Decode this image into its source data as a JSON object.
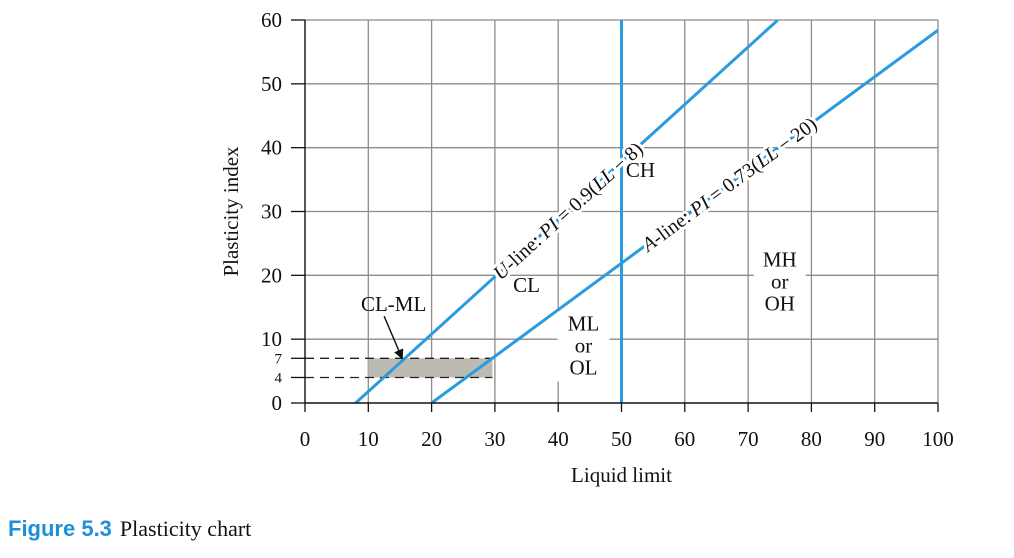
{
  "chart_data": {
    "type": "line",
    "xlabel": "Liquid limit",
    "ylabel": "Plasticity index",
    "xlim": [
      0,
      100
    ],
    "ylim": [
      0,
      60
    ],
    "x_ticks": [
      "0",
      "10",
      "20",
      "30",
      "40",
      "50",
      "60",
      "70",
      "80",
      "90",
      "100"
    ],
    "y_ticks": [
      "0",
      "10",
      "20",
      "30",
      "40",
      "50",
      "60"
    ],
    "y_minor_ticks": [
      "4",
      "7"
    ],
    "grid": true,
    "series": [
      {
        "id": "u-line",
        "type": "line",
        "x": [
          8,
          74.7
        ],
        "y": [
          0,
          60
        ],
        "label": "U-line: PI = 0.9(LL − 8)",
        "color": "#2b9be0"
      },
      {
        "id": "a-line",
        "type": "line",
        "x": [
          20,
          100
        ],
        "y": [
          0,
          58.4
        ],
        "label": "A-line: PI = 0.73(LL − 20)",
        "color": "#2b9be0"
      },
      {
        "id": "ll-50",
        "type": "line",
        "x": [
          50,
          50
        ],
        "y": [
          0,
          60
        ],
        "color": "#2b9be0"
      }
    ],
    "shaded_zone": {
      "name": "CL-ML",
      "x": [
        10,
        29.6
      ],
      "y": [
        4,
        7
      ],
      "color": "#bdbab3"
    },
    "region_labels": [
      {
        "text": "CH",
        "x": 53,
        "y": 36.5
      },
      {
        "text": "CL",
        "x": 35,
        "y": 18.5
      },
      {
        "text": "CL-ML",
        "x": 14,
        "y": 15.5
      },
      {
        "text": "ML\nor\nOL",
        "x": 44,
        "y": 9
      },
      {
        "text": "MH\nor\nOH",
        "x": 75,
        "y": 19
      }
    ]
  },
  "caption": {
    "number": "Figure 5.3",
    "text": "Plasticity chart"
  }
}
